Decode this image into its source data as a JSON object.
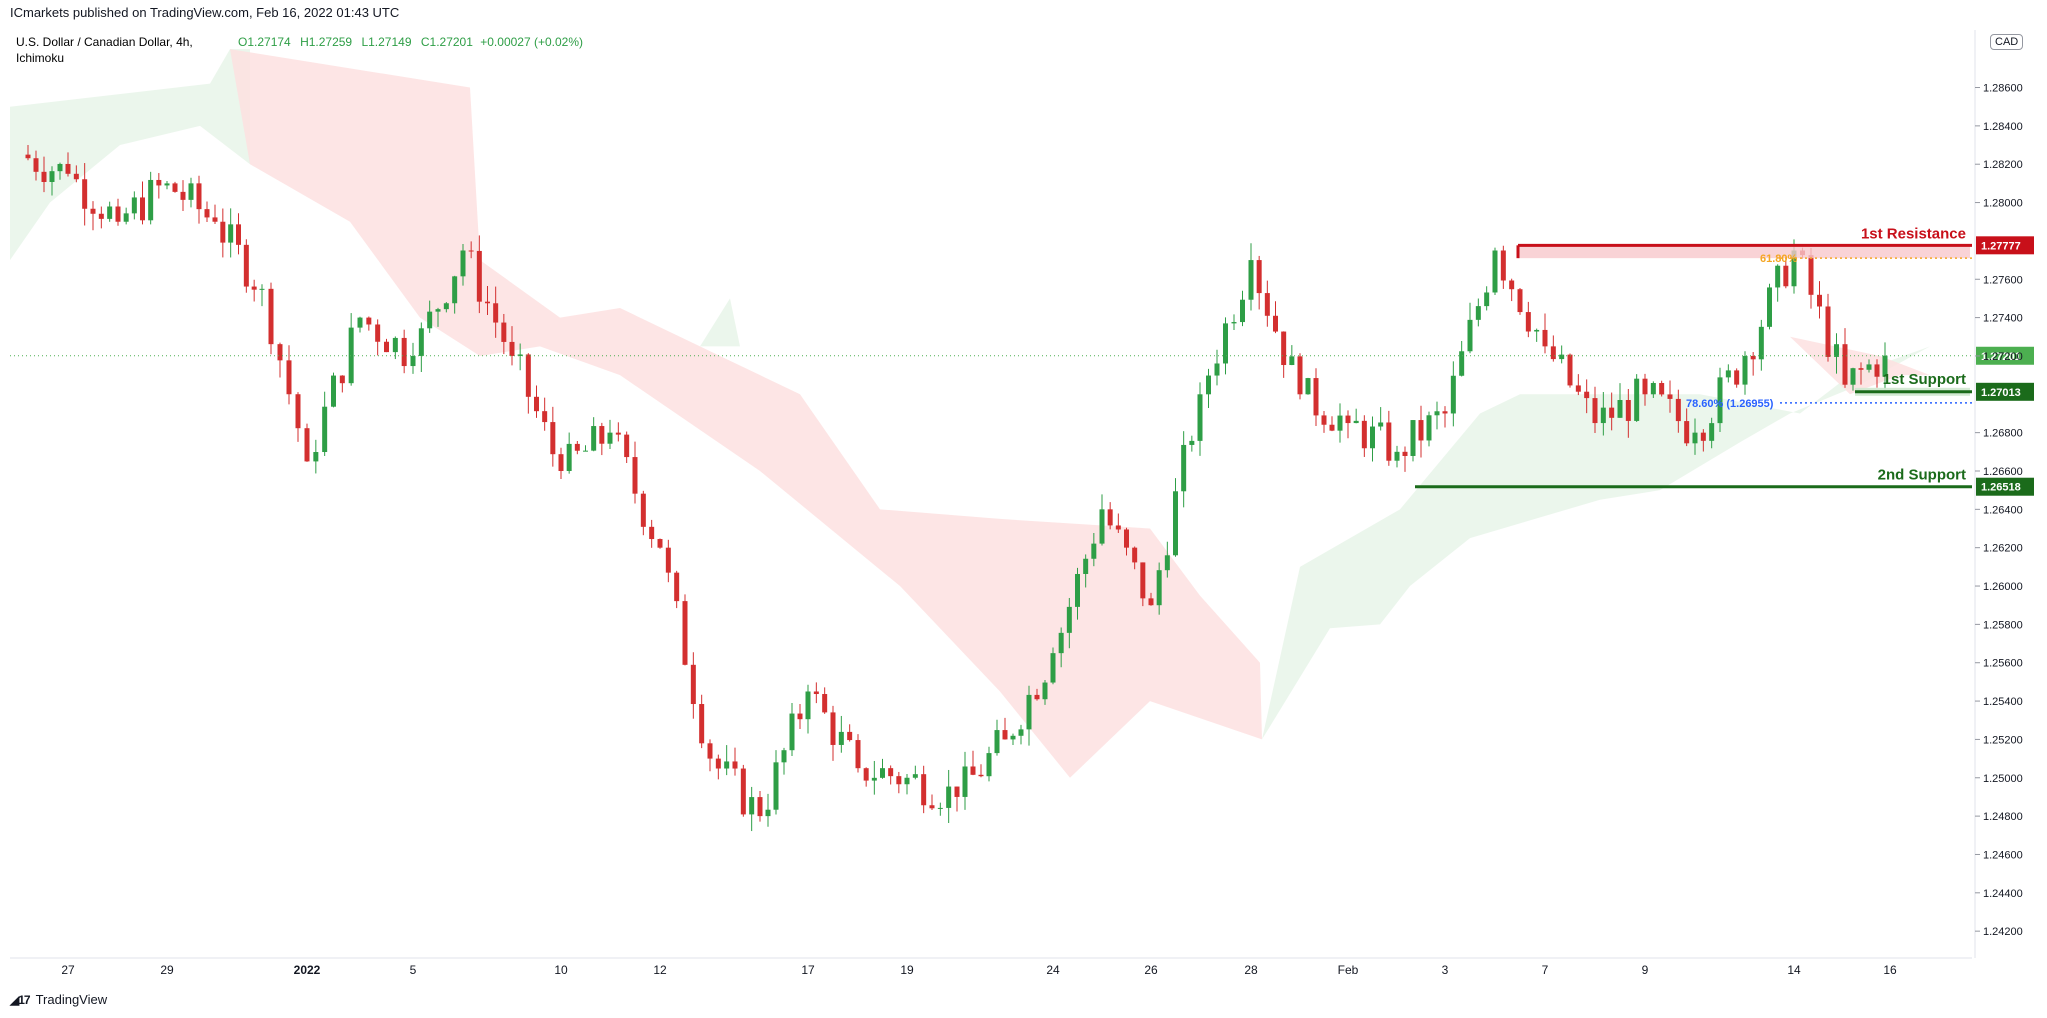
{
  "publisher": "ICmarkets published on TradingView.com, Feb 16, 2022 01:43 UTC",
  "symbol_title": "U.S. Dollar / Canadian Dollar, 4h,",
  "ohlc": {
    "o": "O1.27174",
    "h": "H1.27259",
    "l": "L1.27149",
    "c": "C1.27201",
    "change": "+0.00027 (+0.02%)"
  },
  "indicator": "Ichimoku",
  "currency": "CAD",
  "footer_brand": "TradingView",
  "colors": {
    "up": "#2e9e46",
    "down": "#d32f2f",
    "resistance": "#c8101a",
    "support": "#1b6b1b",
    "cloud_bull": "#e8f5e9",
    "cloud_bear": "#fde0e0",
    "fib_orange": "#f5a623",
    "fib_blue": "#2962ff",
    "last_price": "#4caf50"
  },
  "annotations": {
    "resistance_label": "1st Resistance",
    "support1_label": "1st Support",
    "support2_label": "2nd Support",
    "fib_618": "61.80%",
    "fib_786": "78.60% (1.26955)"
  },
  "price_badges": {
    "resistance": "1.27777",
    "last": "1.27201",
    "support1": "1.27013",
    "support2": "1.26518"
  },
  "chart_data": {
    "type": "candlestick",
    "timeframe": "4h",
    "ylim": [
      1.24,
      1.288
    ],
    "y_ticks": [
      "1.28600",
      "1.28400",
      "1.28200",
      "1.28000",
      "1.27600",
      "1.27400",
      "1.27200",
      "1.26800",
      "1.26600",
      "1.26400",
      "1.26200",
      "1.26000",
      "1.25800",
      "1.25600",
      "1.25400",
      "1.25200",
      "1.25000",
      "1.24800",
      "1.24600",
      "1.24400",
      "1.24200"
    ],
    "x_labels": [
      "27",
      "29",
      "2022",
      "5",
      "10",
      "12",
      "17",
      "19",
      "24",
      "26",
      "28",
      "Feb",
      "3",
      "7",
      "9",
      "14",
      "16"
    ],
    "levels": {
      "resistance": 1.27777,
      "support1": 1.27013,
      "support2": 1.26518,
      "fib_618": 1.2771,
      "fib_786": 1.26955,
      "last_price": 1.27201
    },
    "close_path": [
      {
        "date": "Dec 24",
        "close": 1.2825
      },
      {
        "date": "Dec 27",
        "close": 1.2815
      },
      {
        "date": "Dec 28",
        "close": 1.279
      },
      {
        "date": "Dec 29",
        "close": 1.281
      },
      {
        "date": "Dec 30",
        "close": 1.279
      },
      {
        "date": "Dec 31",
        "close": 1.2755
      },
      {
        "date": "Jan 3",
        "close": 1.2665
      },
      {
        "date": "Jan 4",
        "close": 1.274
      },
      {
        "date": "Jan 5",
        "close": 1.272
      },
      {
        "date": "Jan 6",
        "close": 1.2775
      },
      {
        "date": "Jan 7",
        "close": 1.272
      },
      {
        "date": "Jan 10",
        "close": 1.266
      },
      {
        "date": "Jan 11",
        "close": 1.268
      },
      {
        "date": "Jan 12",
        "close": 1.262
      },
      {
        "date": "Jan 13",
        "close": 1.251
      },
      {
        "date": "Jan 14",
        "close": 1.248
      },
      {
        "date": "Jan 17",
        "close": 1.2545
      },
      {
        "date": "Jan 18",
        "close": 1.2505
      },
      {
        "date": "Jan 19",
        "close": 1.25
      },
      {
        "date": "Jan 20",
        "close": 1.249
      },
      {
        "date": "Jan 21",
        "close": 1.252
      },
      {
        "date": "Jan 24",
        "close": 1.2565
      },
      {
        "date": "Jan 25",
        "close": 1.264
      },
      {
        "date": "Jan 26",
        "close": 1.259
      },
      {
        "date": "Jan 27",
        "close": 1.27
      },
      {
        "date": "Jan 28",
        "close": 1.277
      },
      {
        "date": "Jan 31",
        "close": 1.27
      },
      {
        "date": "Feb 1",
        "close": 1.2685
      },
      {
        "date": "Feb 2",
        "close": 1.267
      },
      {
        "date": "Feb 3",
        "close": 1.269
      },
      {
        "date": "Feb 4",
        "close": 1.2775
      },
      {
        "date": "Feb 7",
        "close": 1.2725
      },
      {
        "date": "Feb 8",
        "close": 1.2685
      },
      {
        "date": "Feb 9",
        "close": 1.27
      },
      {
        "date": "Feb 10",
        "close": 1.268
      },
      {
        "date": "Feb 11",
        "close": 1.272
      },
      {
        "date": "Feb 14",
        "close": 1.2775
      },
      {
        "date": "Feb 15",
        "close": 1.2705
      },
      {
        "date": "Feb 16",
        "close": 1.27201
      }
    ],
    "last_candle": {
      "open": 1.27174,
      "high": 1.27259,
      "low": 1.27149,
      "close": 1.27201
    }
  }
}
